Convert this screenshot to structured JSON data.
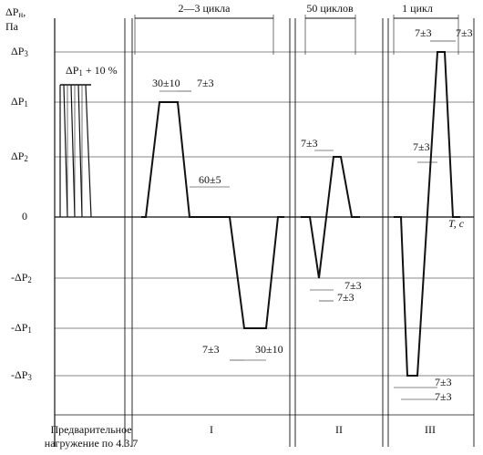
{
  "axis": {
    "y_label": {
      "main": "ΔP",
      "sub": "н",
      "unit": "Па"
    },
    "x_label": "T, c"
  },
  "levels": [
    {
      "main": "ΔP",
      "sub": "3"
    },
    {
      "main": "ΔP",
      "sub": "1"
    },
    {
      "main": "ΔP",
      "sub": "2"
    },
    {
      "main": "0"
    },
    {
      "main": "-ΔP",
      "sub": "2"
    },
    {
      "main": "-ΔP",
      "sub": "1"
    },
    {
      "main": "-ΔP",
      "sub": "3"
    }
  ],
  "preload": {
    "main": "ΔP",
    "sub": "1",
    "rest": " + 10 %"
  },
  "brackets": [
    "2—3 цикла",
    "50 циклов",
    "1 цикл"
  ],
  "annotations": [
    "30±10",
    "7±3",
    "60±5",
    "7±3",
    "30±10",
    "7±3",
    "7±3",
    "7±3",
    "7±3",
    "7±3",
    "7±3",
    "7±3",
    "7±3"
  ],
  "sections": {
    "preliminary": [
      "Предварительное",
      "нагружение по 4.3.7"
    ],
    "labels": [
      "I",
      "II",
      "III"
    ]
  }
}
